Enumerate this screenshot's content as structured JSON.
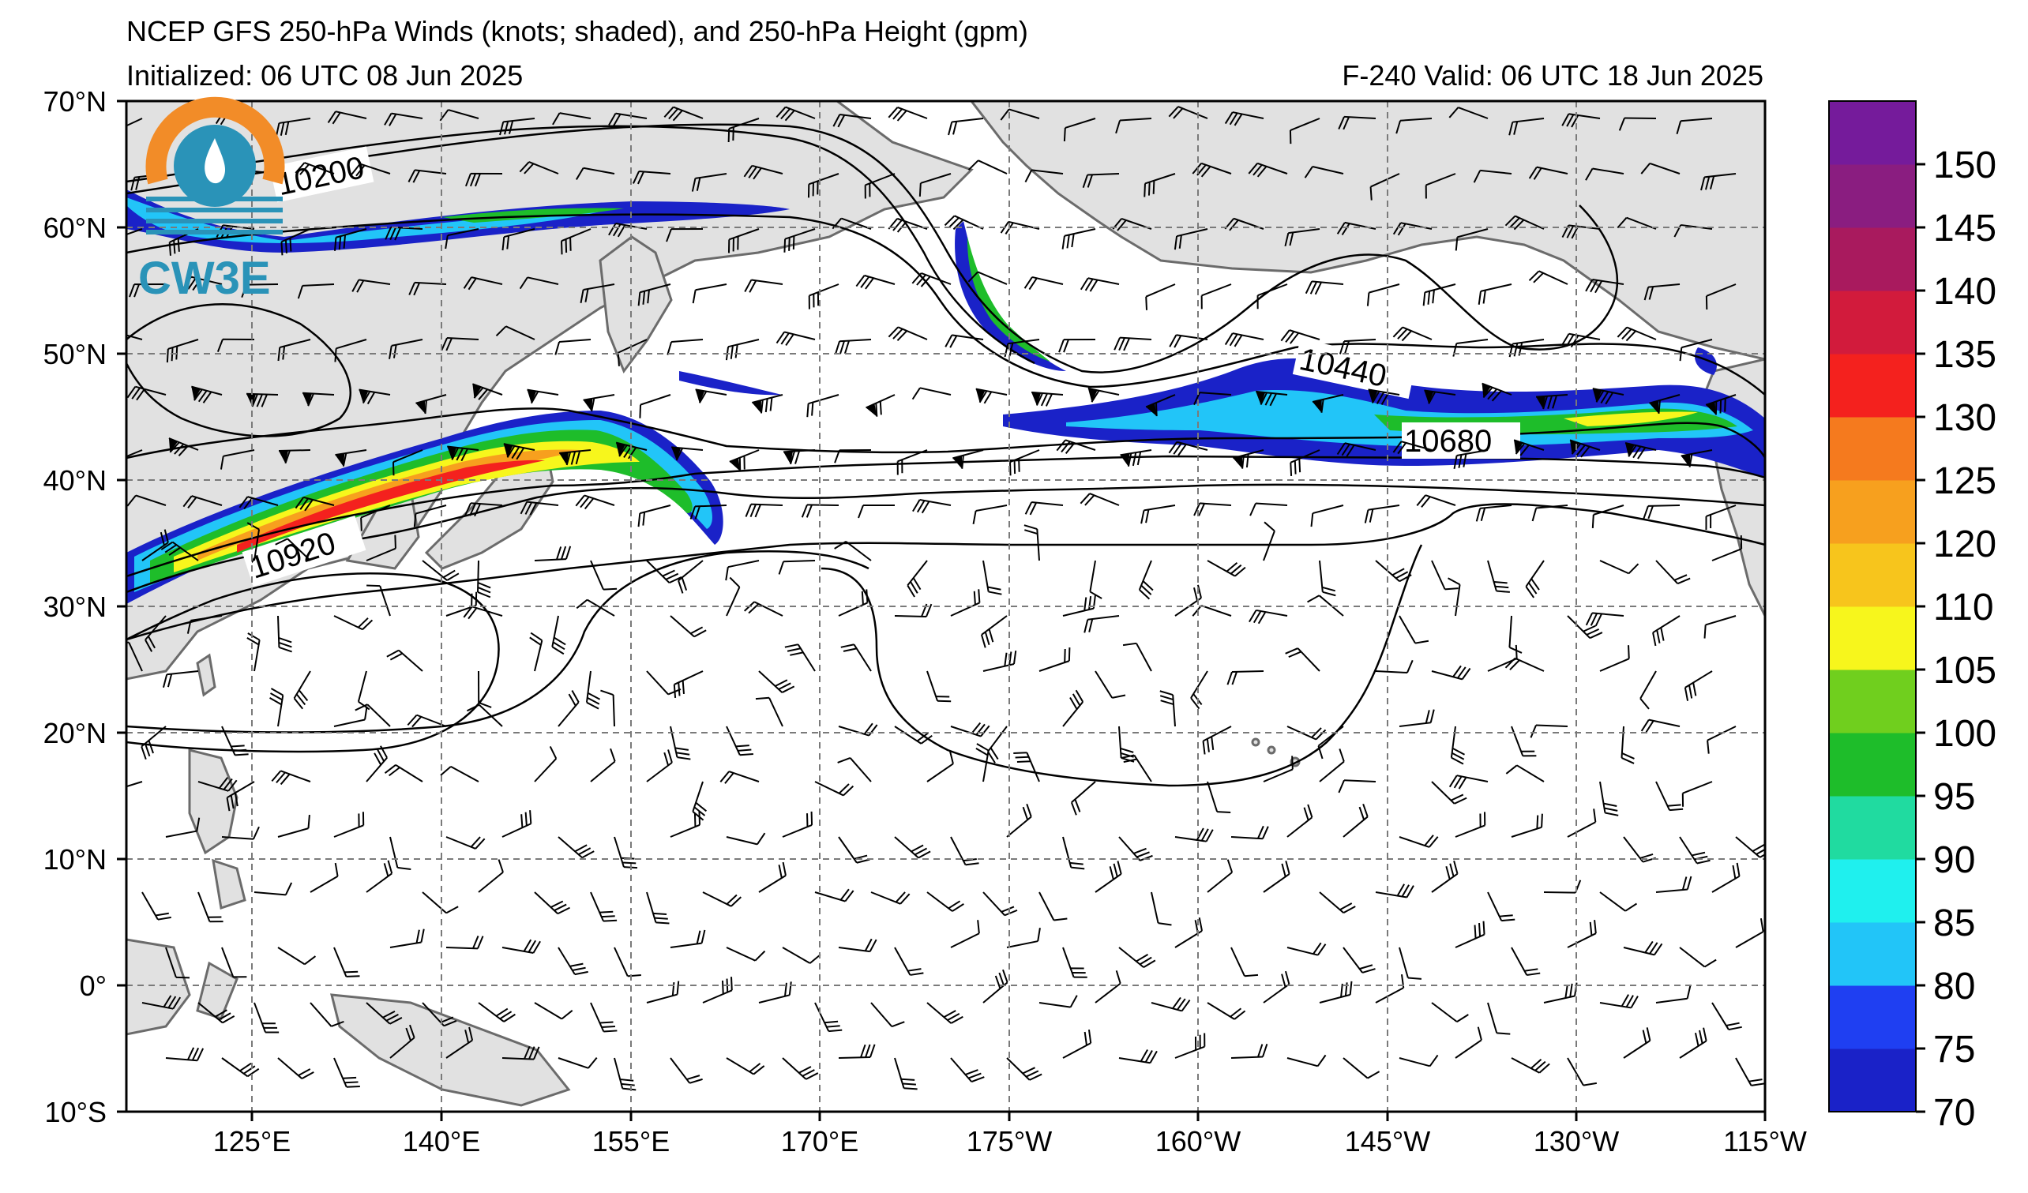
{
  "header": {
    "title": "NCEP GFS 250-hPa Winds (knots; shaded), and 250-hPa Height (gpm)",
    "initialized": "Initialized: 06 UTC 08 Jun 2025",
    "valid": "F-240  Valid: 06 UTC 18 Jun 2025"
  },
  "logo": {
    "text": "CW3E"
  },
  "map": {
    "lat_labels": [
      "70°N",
      "60°N",
      "50°N",
      "40°N",
      "30°N",
      "20°N",
      "10°N",
      "0°",
      "10°S"
    ],
    "lon_labels": [
      "125°E",
      "140°E",
      "155°E",
      "170°E",
      "175°W",
      "160°W",
      "145°W",
      "130°W",
      "115°W"
    ],
    "contour_labels": [
      "10200",
      "10440",
      "10680",
      "10920"
    ]
  },
  "colorbar": {
    "labels": [
      "70",
      "75",
      "80",
      "85",
      "90",
      "95",
      "100",
      "105",
      "110",
      "120",
      "125",
      "130",
      "135",
      "140",
      "145",
      "150"
    ],
    "colors": [
      "#1a22c8",
      "#1f3ff2",
      "#22c5f8",
      "#1ff0ee",
      "#20dba0",
      "#1ebd2a",
      "#70cf1e",
      "#f7f61c",
      "#f7c51c",
      "#f7a01e",
      "#f57a1e",
      "#f4211e",
      "#d21b3c",
      "#a91a5e",
      "#8a1d80",
      "#751b9b"
    ]
  },
  "chart_data": {
    "type": "map",
    "title": "NCEP GFS 250-hPa Winds (knots; shaded), and 250-hPa Height (gpm)",
    "colorbar_range": [
      70,
      155
    ],
    "contour_levels_labeled": [
      10200,
      10440,
      10680,
      10920
    ],
    "lat_range": [
      -10,
      70
    ],
    "lon_range": [
      "110°E",
      "115°W"
    ]
  }
}
